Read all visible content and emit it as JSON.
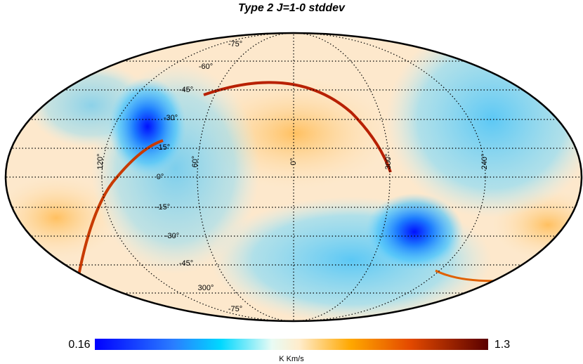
{
  "title": "Type 2 J=1-0 stddev",
  "colorbar": {
    "min": "0.16",
    "max": "1.3",
    "unit": "K Km/s"
  },
  "graticule": {
    "latitude_labels": [
      "-75°",
      "-60°",
      "-45°",
      "-30°",
      "-15°",
      "0°",
      "-15°",
      "-30°",
      "-45°",
      "300°",
      "-75°"
    ],
    "longitude_labels": [
      "120°",
      "60°",
      "0°",
      "300°",
      "240°"
    ]
  }
}
